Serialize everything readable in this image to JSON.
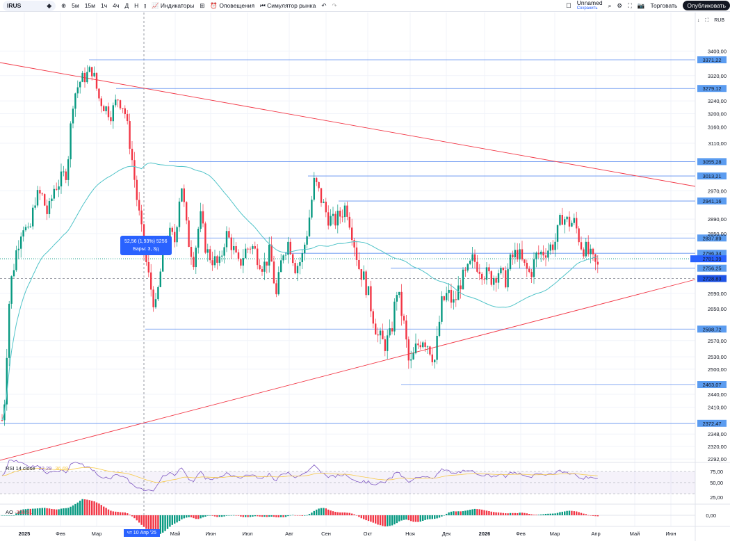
{
  "toolbar": {
    "symbol": "IRUS",
    "intervals": [
      "5м",
      "15м",
      "1ч",
      "4ч",
      "Д",
      "Н"
    ],
    "indicators": "Индикаторы",
    "alerts": "Оповещения",
    "replay": "Симулятор рынка",
    "layout_name": "Unnamed",
    "layout_status": "Сохранить",
    "trade": "Торговать",
    "publish": "Опубликовать"
  },
  "scale": {
    "currency": "RUB"
  },
  "measure_tooltip": {
    "line1": "52,56 (1,93%) 5256",
    "line2": "Бары: 3, 3д"
  },
  "indicators": {
    "rsi": {
      "label": "RSI 14 close",
      "value": "22,29",
      "ma_value": "36,69",
      "levels": [
        "75,00",
        "50,00",
        "25,00"
      ]
    },
    "ao": {
      "label": "AO",
      "value": "-308,51",
      "zero": "0,00"
    }
  },
  "time_axis": {
    "labels": [
      "2025",
      "Фев",
      "Мар",
      "Май",
      "Июн",
      "Июл",
      "Авг",
      "Сен",
      "Окт",
      "Ноя",
      "Дек",
      "2026",
      "Фев",
      "Мар",
      "Апр",
      "Май",
      "Июн"
    ],
    "crosshair_date": "чт 10 Апр '25"
  },
  "colors": {
    "up": "#089981",
    "down": "#f23645",
    "level": "#2962ff",
    "trend": "#f23645",
    "ma": "#4fc3c8"
  },
  "chart_data": {
    "type": "candlestick",
    "symbol": "IRUS",
    "scale": "log",
    "price_ticks": [
      3400,
      3320,
      3240,
      3200,
      3160,
      3110,
      2970,
      2890,
      2850,
      2690,
      2650,
      2570,
      2530,
      2500,
      2440,
      2410,
      2348,
      2320,
      2292
    ],
    "price_tick_labels": [
      "3400,00",
      "3320,00",
      "3240,00",
      "3200,00",
      "3160,00",
      "3110,00",
      "2970,00",
      "2890,00",
      "2850,00",
      "2690,00",
      "2650,00",
      "2570,00",
      "2530,00",
      "2500,00",
      "2440,00",
      "2410,00",
      "2348,00",
      "2320,00",
      "2292,00"
    ],
    "levels": [
      {
        "price": 3371.22,
        "label": "3371,22"
      },
      {
        "price": 3279.12,
        "label": "3279,12"
      },
      {
        "price": 3055.28,
        "label": "3055,28"
      },
      {
        "price": 3013.21,
        "label": "3013,21"
      },
      {
        "price": 2941.16,
        "label": "2941,16"
      },
      {
        "price": 2837.89,
        "label": "2837,89"
      },
      {
        "price": 2796.34,
        "label": "2796,34"
      },
      {
        "price": 2756.25,
        "label": "2756,25"
      },
      {
        "price": 2728.83,
        "label": "2728,83"
      },
      {
        "price": 2598.72,
        "label": "2598,72"
      },
      {
        "price": 2463.07,
        "label": "2463,07"
      },
      {
        "price": 2372.47,
        "label": "2372,47"
      }
    ],
    "last_price": {
      "price": 2781.39,
      "label": "2781,39"
    },
    "closes": [
      2380,
      2700,
      2800,
      2880,
      2840,
      2950,
      2960,
      2900,
      2980,
      3000,
      3030,
      3250,
      3300,
      3320,
      3340,
      3250,
      3220,
      3200,
      3250,
      3220,
      3100,
      2950,
      2820,
      2720,
      2650,
      2780,
      2850,
      2830,
      3000,
      2840,
      2780,
      2900,
      2800,
      2780,
      2760,
      2850,
      2820,
      2760,
      2800,
      2820,
      2790,
      2760,
      2800,
      2680,
      2800,
      2830,
      2760,
      2780,
      2870,
      3000,
      2950,
      2900,
      2880,
      2900,
      2930,
      2850,
      2760,
      2720,
      2650,
      2580,
      2560,
      2580,
      2700,
      2620,
      2500,
      2550,
      2580,
      2560,
      2520,
      2660,
      2690,
      2660,
      2720,
      2740,
      2780,
      2760,
      2740,
      2730,
      2750,
      2720,
      2780,
      2800,
      2760,
      2740,
      2790,
      2800,
      2810,
      2830,
      2900,
      2880,
      2880,
      2820,
      2800,
      2770,
      2750
    ]
  }
}
